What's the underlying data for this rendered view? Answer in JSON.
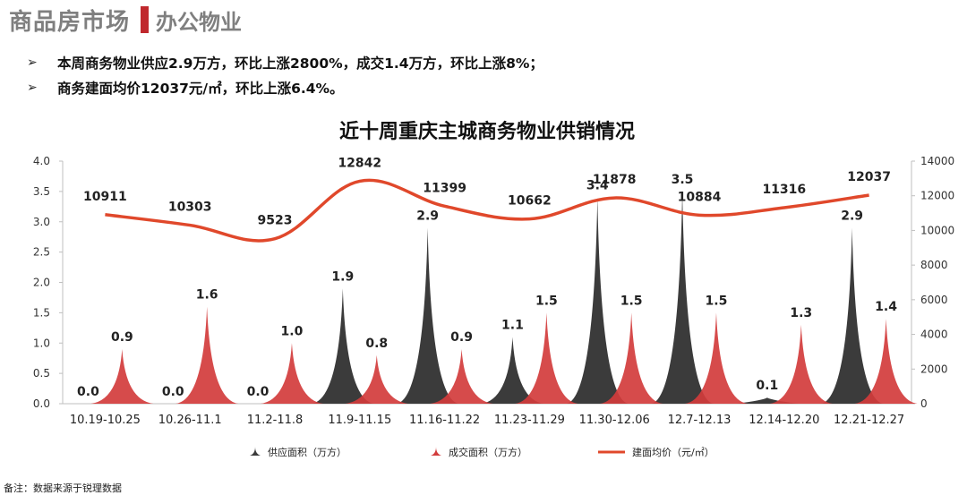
{
  "header": {
    "title": "商品房市场",
    "subtitle": "办公物业"
  },
  "bullets": [
    "本周商务物业供应2.9万方，环比上涨2800%，成交1.4万方，环比上涨8%；",
    "商务建面均价12037元/㎡，环比上涨6.4%。"
  ],
  "footnote": "备注：数据来源于锐理数据",
  "icons": {
    "bullet": "arrow-right-icon"
  },
  "colors": {
    "supply": "#3b3b3b",
    "sales": "#d23c3c",
    "price": "#e0482b"
  },
  "chart_data": {
    "type": "mixed",
    "title": "近十周重庆主城商务物业供销情况",
    "categories": [
      "10.19-10.25",
      "10.26-11.1",
      "11.2-11.8",
      "11.9-11.15",
      "11.16-11.22",
      "11.23-11.29",
      "11.30-12.06",
      "12.7-12.13",
      "12.14-12.20",
      "12.21-12.27"
    ],
    "series": [
      {
        "name": "供应面积（万方）",
        "type": "spike",
        "axis": "left",
        "values": [
          0.0,
          0.0,
          0.0,
          1.9,
          2.9,
          1.1,
          3.4,
          3.5,
          0.1,
          2.9
        ]
      },
      {
        "name": "成交面积（万方）",
        "type": "spike",
        "axis": "left",
        "values": [
          0.9,
          1.6,
          1.0,
          0.8,
          0.9,
          1.5,
          1.5,
          1.5,
          1.3,
          1.4
        ]
      },
      {
        "name": "建面均价（元/㎡）",
        "type": "line",
        "axis": "right",
        "values": [
          10911,
          10303,
          9523,
          12842,
          11399,
          10662,
          11878,
          10884,
          11316,
          12037
        ]
      }
    ],
    "y_left": {
      "min": 0,
      "max": 4.0,
      "ticks": [
        "0.0",
        "0.5",
        "1.0",
        "1.5",
        "2.0",
        "2.5",
        "3.0",
        "3.5",
        "4.0"
      ]
    },
    "y_right": {
      "min": 0,
      "max": 14000,
      "ticks": [
        "0",
        "2000",
        "4000",
        "6000",
        "8000",
        "10000",
        "12000",
        "14000"
      ]
    },
    "legend_position": "bottom"
  }
}
